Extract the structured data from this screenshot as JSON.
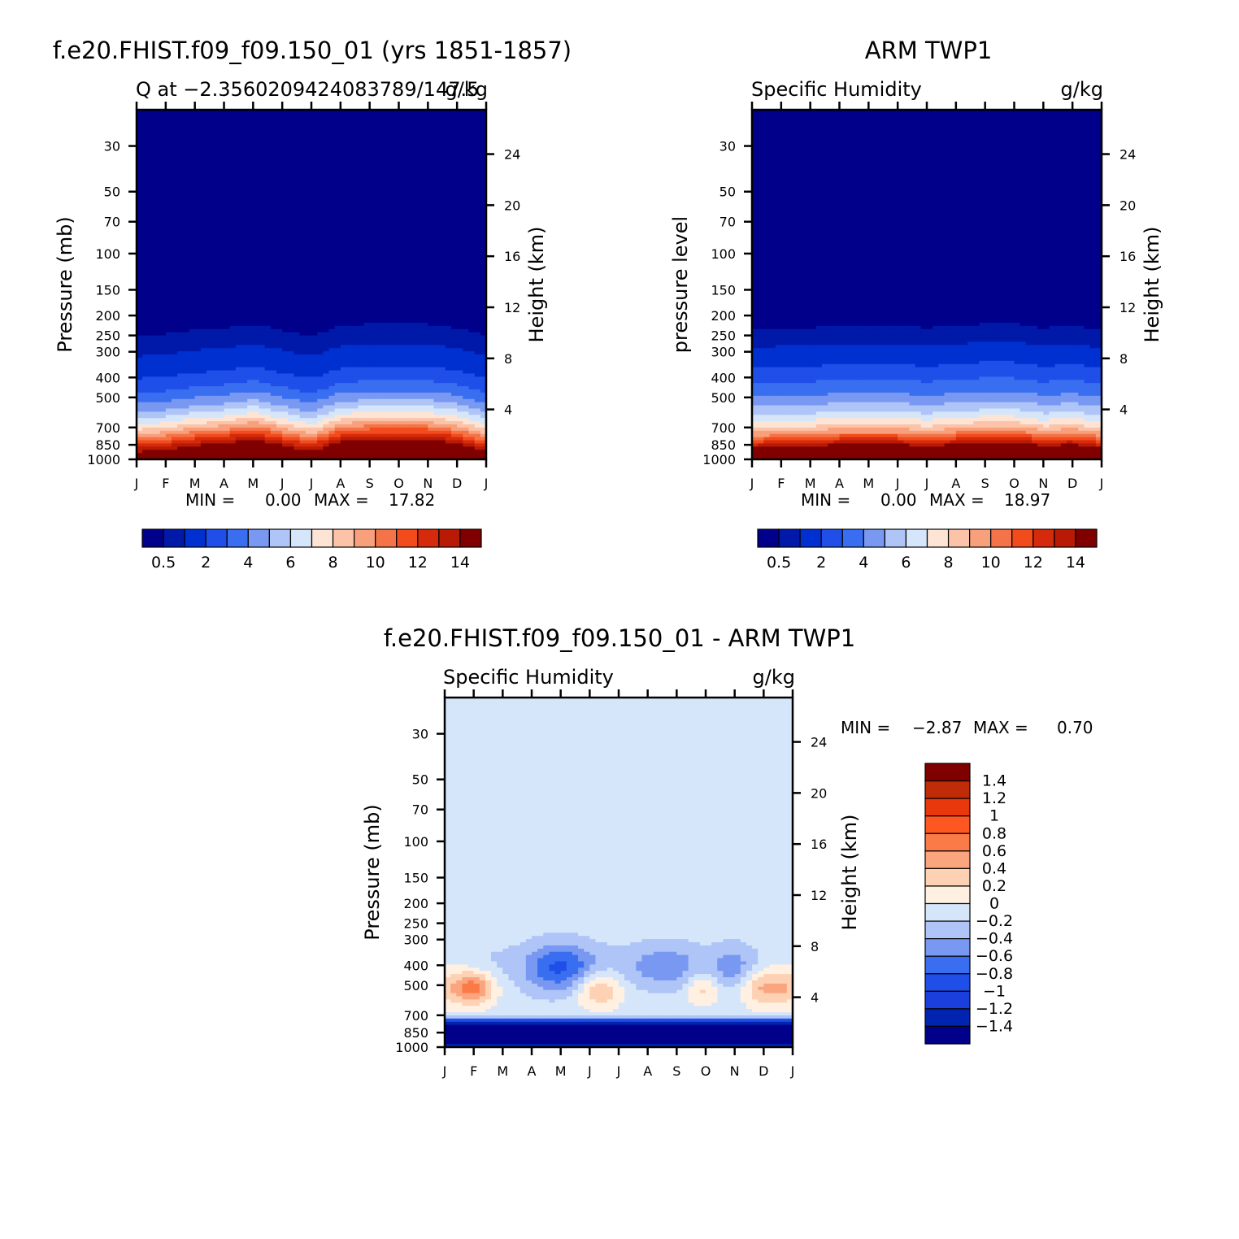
{
  "panels": [
    {
      "id": "model",
      "main_title": "f.e20.FHIST.f09_f09.150_01 (yrs 1851-1857)",
      "left_string": "Q at -2.3560209424083789/147.5",
      "right_string": "g/kg",
      "ylabel": "Pressure (mb)",
      "ylabel_right": "Height (km)",
      "min_text": "MIN =",
      "min_value": "0.00",
      "max_text": "MAX =",
      "max_value": "17.82"
    },
    {
      "id": "obs",
      "main_title": "ARM TWP1",
      "left_string": "Specific Humidity",
      "right_string": "g/kg",
      "ylabel": "pressure level",
      "ylabel_right": "Height (km)",
      "min_text": "MIN =",
      "min_value": "0.00",
      "max_text": "MAX =",
      "max_value": "18.97"
    },
    {
      "id": "diff",
      "main_title": "f.e20.FHIST.f09_f09.150_01 - ARM TWP1",
      "left_string": "Specific Humidity",
      "right_string": "g/kg",
      "ylabel": "Pressure (mb)",
      "ylabel_right": "Height (km)",
      "min_text": "MIN =",
      "min_value": "-2.87",
      "max_text": "MAX =",
      "max_value": "0.70"
    }
  ],
  "colorbar_abs": {
    "colors": [
      "#00008b",
      "#0019a8",
      "#0030cf",
      "#1f4fe8",
      "#3a6ef0",
      "#7898f2",
      "#afc4f7",
      "#d6e6fa",
      "#fde4d4",
      "#fcc3a8",
      "#f8a07c",
      "#f47348",
      "#f24c1c",
      "#d52a0b",
      "#b81a05",
      "#800000"
    ],
    "labels": [
      "0.5",
      "2",
      "4",
      "6",
      "8",
      "10",
      "12",
      "14"
    ]
  },
  "colorbar_diff": {
    "colors": [
      "#800000",
      "#c02b08",
      "#e8380c",
      "#ff5721",
      "#fb7b48",
      "#fba57e",
      "#fdd1b4",
      "#fff0e2",
      "#d6e6fa",
      "#afc4f7",
      "#7898f2",
      "#3a6ef0",
      "#1f4fe8",
      "#1a3fdc",
      "#0023b0",
      "#00008b"
    ],
    "labels": [
      "1.4",
      "1.2",
      "1",
      "0.8",
      "0.6",
      "0.4",
      "0.2",
      "0",
      "-0.2",
      "-0.4",
      "-0.6",
      "-0.8",
      "-1",
      "-1.2",
      "-1.4"
    ]
  },
  "chart_data": [
    {
      "type": "heatmap",
      "title": "f.e20.FHIST.f09_f09.150_01 (yrs 1851-1857)",
      "subtitle": "Q at -2.3560209424083789/147.5",
      "units": "g/kg",
      "xlabel": "",
      "ylabel": "Pressure (mb)",
      "y2label": "Height (km)",
      "x_ticks": [
        "J",
        "F",
        "M",
        "A",
        "M",
        "J",
        "J",
        "A",
        "S",
        "O",
        "N",
        "D",
        "J"
      ],
      "y_ticks": [
        30,
        50,
        70,
        100,
        150,
        200,
        250,
        300,
        400,
        500,
        700,
        850,
        1000
      ],
      "y2_ticks": [
        4,
        8,
        12,
        16,
        20,
        24
      ],
      "ylim": [
        1000,
        20
      ],
      "scale": "log",
      "min": 0.0,
      "max": 17.82,
      "contour_levels": [
        0.5,
        1,
        2,
        3,
        4,
        5,
        6,
        7,
        8,
        9,
        10,
        11,
        12,
        13,
        14
      ],
      "profile_pressure": [
        1000,
        925,
        850,
        775,
        700,
        600,
        500,
        400,
        300,
        200,
        100,
        20
      ],
      "profile_value": [
        17.0,
        14.2,
        12.0,
        9.6,
        7.5,
        5.2,
        3.3,
        1.9,
        0.8,
        0.1,
        0.0,
        0.0
      ],
      "seasonal_dlog": [
        0.0,
        0.01,
        0.03,
        0.04,
        0.06,
        0.03,
        0.0,
        0.05,
        0.06,
        0.06,
        0.06,
        0.04,
        0.0
      ]
    },
    {
      "type": "heatmap",
      "title": "ARM TWP1",
      "subtitle": "Specific Humidity",
      "units": "g/kg",
      "xlabel": "",
      "ylabel": "pressure level",
      "y2label": "Height (km)",
      "x_ticks": [
        "J",
        "F",
        "M",
        "A",
        "M",
        "J",
        "J",
        "A",
        "S",
        "O",
        "N",
        "D",
        "J"
      ],
      "y_ticks": [
        30,
        50,
        70,
        100,
        150,
        200,
        250,
        300,
        400,
        500,
        700,
        850,
        1000
      ],
      "y2_ticks": [
        4,
        8,
        12,
        16,
        20,
        24
      ],
      "ylim": [
        1000,
        20
      ],
      "scale": "log",
      "min": 0.0,
      "max": 18.97,
      "contour_levels": [
        0.5,
        1,
        2,
        3,
        4,
        5,
        6,
        7,
        8,
        9,
        10,
        11,
        12,
        13,
        14
      ],
      "profile_pressure": [
        1000,
        925,
        850,
        775,
        700,
        600,
        500,
        400,
        300,
        200,
        100,
        20
      ],
      "profile_value": [
        18.5,
        15.5,
        12.7,
        10.0,
        7.8,
        5.7,
        4.0,
        2.5,
        1.1,
        0.1,
        0.0,
        0.0
      ],
      "seasonal_dlog": [
        0.0,
        0.01,
        0.01,
        0.02,
        0.02,
        0.02,
        0.01,
        0.02,
        0.03,
        0.03,
        0.01,
        0.02,
        0.0
      ]
    },
    {
      "type": "heatmap",
      "title": "f.e20.FHIST.f09_f09.150_01 - ARM TWP1",
      "subtitle": "Specific Humidity",
      "units": "g/kg",
      "xlabel": "",
      "ylabel": "Pressure (mb)",
      "y2label": "Height (km)",
      "x_ticks": [
        "J",
        "F",
        "M",
        "A",
        "M",
        "J",
        "J",
        "A",
        "S",
        "O",
        "N",
        "D",
        "J"
      ],
      "y_ticks": [
        30,
        50,
        70,
        100,
        150,
        200,
        250,
        300,
        400,
        500,
        700,
        850,
        1000
      ],
      "y2_ticks": [
        4,
        8,
        12,
        16,
        20,
        24
      ],
      "ylim": [
        1000,
        20
      ],
      "scale": "log",
      "min": -2.87,
      "max": 0.7,
      "contour_levels": [
        -1.4,
        -1.2,
        -1,
        -0.8,
        -0.6,
        -0.4,
        -0.2,
        0,
        0.2,
        0.4,
        0.6,
        0.8,
        1,
        1.2,
        1.4
      ],
      "background_value": -0.1,
      "features": [
        {
          "month": 0.0,
          "pressure": 515,
          "amp": 0.3,
          "sx": 0.85,
          "sy": 0.1
        },
        {
          "month": 1.0,
          "pressure": 515,
          "amp": 0.75,
          "sx": 0.7,
          "sy": 0.08
        },
        {
          "month": 5.3,
          "pressure": 525,
          "amp": 0.55,
          "sx": 0.8,
          "sy": 0.09
        },
        {
          "month": 8.9,
          "pressure": 520,
          "amp": 0.4,
          "sx": 0.55,
          "sy": 0.08
        },
        {
          "month": 11.0,
          "pressure": 515,
          "amp": 0.55,
          "sx": 0.8,
          "sy": 0.09
        },
        {
          "month": 12.0,
          "pressure": 515,
          "amp": 0.35,
          "sx": 0.6,
          "sy": 0.09
        },
        {
          "month": 4.0,
          "pressure": 410,
          "amp": -0.75,
          "sx": 1.3,
          "sy": 0.12
        },
        {
          "month": 7.6,
          "pressure": 405,
          "amp": -0.45,
          "sx": 1.5,
          "sy": 0.11
        },
        {
          "month": 10.0,
          "pressure": 410,
          "amp": -0.4,
          "sx": 0.8,
          "sy": 0.11
        },
        {
          "month": 1.5,
          "pressure": 380,
          "amp": -0.1,
          "sx": 1.0,
          "sy": 0.1
        }
      ],
      "low_band": {
        "top_pressure": 700,
        "value_near_top": -0.9,
        "value_mid": -1.8,
        "value_bottom": -1.3
      }
    }
  ]
}
